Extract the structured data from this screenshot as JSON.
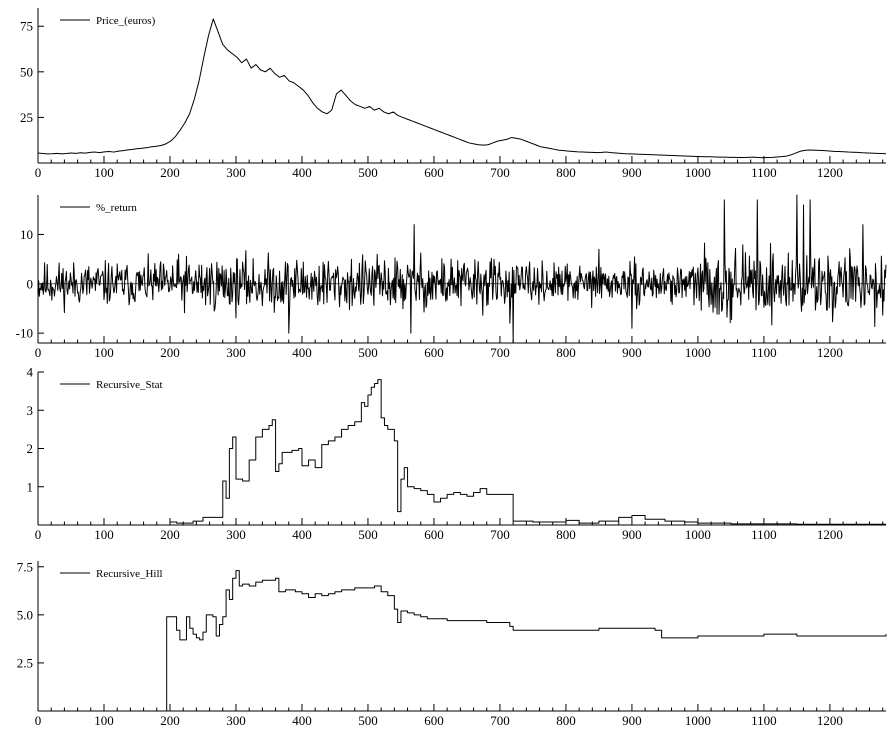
{
  "chart_data": [
    {
      "type": "line",
      "series": [
        {
          "name": "Price_(euros)",
          "x_range": [
            0,
            1285
          ],
          "values": [
            5.5,
            5.2,
            5.0,
            5.1,
            5.3,
            5.0,
            5.2,
            5.5,
            5.3,
            5.6,
            5.4,
            5.8,
            6.0,
            5.7,
            6.1,
            6.3,
            6.0,
            6.5,
            6.8,
            7.2,
            7.5,
            7.9,
            8.1,
            8.4,
            8.9,
            9.2,
            9.6,
            10.5,
            12,
            14.5,
            18,
            22,
            27,
            35,
            45,
            58,
            70,
            79,
            72,
            65,
            62,
            60,
            58,
            55,
            57,
            52,
            54,
            51,
            50,
            52,
            49,
            47,
            48,
            45,
            44,
            42,
            40,
            37,
            33,
            30,
            28,
            27,
            29,
            38,
            40,
            37,
            34,
            32,
            31,
            30,
            31,
            29,
            30,
            28,
            27,
            28,
            26,
            25,
            24,
            23,
            22,
            21,
            20,
            19,
            18,
            17,
            16,
            15,
            14,
            13,
            12,
            11,
            10.5,
            10,
            9.8,
            10,
            11,
            12,
            12.5,
            13,
            14,
            13.5,
            13,
            12,
            11,
            10,
            9,
            8.5,
            8,
            7.5,
            7,
            6.8,
            6.5,
            6.3,
            6.1,
            6.0,
            5.9,
            5.8,
            5.7,
            5.8,
            6.0,
            5.7,
            5.5,
            5.3,
            5.1,
            5.0,
            4.9,
            4.8,
            4.7,
            4.6,
            4.5,
            4.4,
            4.3,
            4.2,
            4.1,
            4.0,
            3.9,
            3.8,
            3.7,
            3.6,
            3.5,
            3.4,
            3.4,
            3.3,
            3.2,
            3.2,
            3.1,
            3.1,
            3.0,
            3.0,
            3.1,
            3.2,
            3.0,
            2.9,
            3.0,
            3.1,
            3.3,
            3.5,
            3.8,
            4.5,
            5.5,
            6.5,
            7.0,
            7.1,
            7.0,
            6.9,
            6.8,
            6.6,
            6.4,
            6.3,
            6.2,
            6.0,
            5.9,
            5.8,
            5.6,
            5.5,
            5.4,
            5.3,
            5.2,
            5.1
          ]
        }
      ],
      "xlim": [
        0,
        1285
      ],
      "ylim": [
        0,
        85
      ],
      "x_ticks": [
        "0",
        "100",
        "200",
        "300",
        "400",
        "500",
        "600",
        "700",
        "800",
        "900",
        "1000",
        "1100",
        "1200"
      ],
      "y_ticks": [
        {
          "v": 75,
          "label": "75"
        },
        {
          "v": 50,
          "label": "50"
        },
        {
          "v": 25,
          "label": "25"
        }
      ],
      "legend": "top-left"
    },
    {
      "type": "line",
      "series": [
        {
          "name": "%_return",
          "x_range": [
            0,
            1285
          ],
          "generated": "noise",
          "seed": 11,
          "amplitude_by_segment": [
            [
              0,
              200,
              4
            ],
            [
              200,
              700,
              5
            ],
            [
              700,
              1000,
              3.5
            ],
            [
              1000,
              1285,
              6
            ]
          ],
          "spikes": [
            [
              570,
              12
            ],
            [
              565,
              -10
            ],
            [
              720,
              -12
            ],
            [
              715,
              -8
            ],
            [
              1040,
              17
            ],
            [
              1090,
              17
            ],
            [
              1150,
              18
            ],
            [
              1160,
              16
            ],
            [
              1170,
              17
            ],
            [
              1250,
              12
            ],
            [
              900,
              -9
            ],
            [
              850,
              7
            ],
            [
              380,
              -10
            ]
          ],
          "zero_line": true
        }
      ],
      "xlim": [
        0,
        1285
      ],
      "ylim": [
        -12,
        18
      ],
      "x_ticks": [
        "0",
        "100",
        "200",
        "300",
        "400",
        "500",
        "600",
        "700",
        "800",
        "900",
        "1000",
        "1100",
        "1200"
      ],
      "y_ticks": [
        {
          "v": 10,
          "label": "10"
        },
        {
          "v": 0,
          "label": "0"
        },
        {
          "v": -10,
          "label": "-10"
        }
      ],
      "legend": "top-left"
    },
    {
      "type": "line",
      "step": true,
      "series": [
        {
          "name": "Recursive_Stat",
          "points": [
            [
              0,
              0
            ],
            [
              195,
              0
            ],
            [
              200,
              0.08
            ],
            [
              210,
              0.05
            ],
            [
              230,
              0.05
            ],
            [
              235,
              0.1
            ],
            [
              245,
              0.1
            ],
            [
              250,
              0.2
            ],
            [
              270,
              0.2
            ],
            [
              280,
              1.15
            ],
            [
              285,
              0.7
            ],
            [
              290,
              2.0
            ],
            [
              295,
              2.3
            ],
            [
              300,
              1.2
            ],
            [
              310,
              1.15
            ],
            [
              320,
              1.7
            ],
            [
              330,
              2.3
            ],
            [
              340,
              2.5
            ],
            [
              350,
              2.6
            ],
            [
              355,
              2.75
            ],
            [
              360,
              1.4
            ],
            [
              365,
              1.6
            ],
            [
              370,
              1.9
            ],
            [
              385,
              1.95
            ],
            [
              395,
              2.0
            ],
            [
              400,
              1.55
            ],
            [
              410,
              1.7
            ],
            [
              420,
              1.5
            ],
            [
              430,
              2.1
            ],
            [
              440,
              2.2
            ],
            [
              450,
              2.3
            ],
            [
              460,
              2.5
            ],
            [
              470,
              2.6
            ],
            [
              480,
              2.7
            ],
            [
              490,
              3.2
            ],
            [
              495,
              3.1
            ],
            [
              500,
              3.4
            ],
            [
              505,
              3.6
            ],
            [
              510,
              3.7
            ],
            [
              515,
              3.8
            ],
            [
              520,
              2.8
            ],
            [
              525,
              2.6
            ],
            [
              530,
              2.5
            ],
            [
              540,
              2.2
            ],
            [
              545,
              0.35
            ],
            [
              550,
              1.2
            ],
            [
              555,
              1.5
            ],
            [
              560,
              1.0
            ],
            [
              570,
              0.95
            ],
            [
              580,
              0.9
            ],
            [
              590,
              0.8
            ],
            [
              600,
              0.6
            ],
            [
              610,
              0.7
            ],
            [
              620,
              0.8
            ],
            [
              630,
              0.85
            ],
            [
              640,
              0.8
            ],
            [
              650,
              0.75
            ],
            [
              660,
              0.85
            ],
            [
              670,
              0.95
            ],
            [
              680,
              0.8
            ],
            [
              700,
              0.8
            ],
            [
              715,
              0.8
            ],
            [
              720,
              0.1
            ],
            [
              750,
              0.08
            ],
            [
              800,
              0.12
            ],
            [
              820,
              0.05
            ],
            [
              850,
              0.1
            ],
            [
              880,
              0.2
            ],
            [
              900,
              0.25
            ],
            [
              920,
              0.15
            ],
            [
              950,
              0.1
            ],
            [
              980,
              0.08
            ],
            [
              1000,
              0.05
            ],
            [
              1050,
              0.03
            ],
            [
              1100,
              0.03
            ],
            [
              1150,
              0.02
            ],
            [
              1200,
              0.02
            ],
            [
              1285,
              0.02
            ]
          ]
        }
      ],
      "xlim": [
        0,
        1285
      ],
      "ylim": [
        0,
        4
      ],
      "x_ticks": [
        "0",
        "100",
        "200",
        "300",
        "400",
        "500",
        "600",
        "700",
        "800",
        "900",
        "1000",
        "1100",
        "1200"
      ],
      "y_ticks": [
        {
          "v": 4,
          "label": "4"
        },
        {
          "v": 3,
          "label": "3"
        },
        {
          "v": 2,
          "label": "2"
        },
        {
          "v": 1,
          "label": "1"
        }
      ],
      "legend": "top-left"
    },
    {
      "type": "line",
      "step": true,
      "series": [
        {
          "name": "Recursive_Hill",
          "points": [
            [
              0,
              0
            ],
            [
              193,
              0
            ],
            [
              195,
              4.9
            ],
            [
              200,
              4.9
            ],
            [
              205,
              4.9
            ],
            [
              210,
              4.2
            ],
            [
              215,
              3.7
            ],
            [
              220,
              3.7
            ],
            [
              225,
              4.9
            ],
            [
              230,
              4.3
            ],
            [
              235,
              4.0
            ],
            [
              240,
              3.8
            ],
            [
              245,
              3.7
            ],
            [
              250,
              4.1
            ],
            [
              255,
              5.0
            ],
            [
              265,
              4.9
            ],
            [
              270,
              3.9
            ],
            [
              275,
              4.5
            ],
            [
              280,
              4.9
            ],
            [
              285,
              6.3
            ],
            [
              290,
              5.8
            ],
            [
              295,
              6.9
            ],
            [
              300,
              7.3
            ],
            [
              305,
              6.5
            ],
            [
              310,
              6.6
            ],
            [
              320,
              6.5
            ],
            [
              330,
              6.7
            ],
            [
              340,
              6.8
            ],
            [
              350,
              6.8
            ],
            [
              360,
              6.9
            ],
            [
              365,
              6.2
            ],
            [
              375,
              6.3
            ],
            [
              390,
              6.2
            ],
            [
              400,
              6.1
            ],
            [
              410,
              5.9
            ],
            [
              420,
              6.1
            ],
            [
              430,
              6.0
            ],
            [
              440,
              6.1
            ],
            [
              450,
              6.2
            ],
            [
              460,
              6.3
            ],
            [
              470,
              6.3
            ],
            [
              480,
              6.4
            ],
            [
              490,
              6.4
            ],
            [
              500,
              6.4
            ],
            [
              510,
              6.5
            ],
            [
              520,
              6.2
            ],
            [
              530,
              6.0
            ],
            [
              540,
              5.3
            ],
            [
              545,
              4.6
            ],
            [
              550,
              5.2
            ],
            [
              560,
              5.1
            ],
            [
              570,
              5.0
            ],
            [
              580,
              4.9
            ],
            [
              590,
              4.8
            ],
            [
              600,
              4.8
            ],
            [
              620,
              4.7
            ],
            [
              640,
              4.7
            ],
            [
              660,
              4.7
            ],
            [
              680,
              4.6
            ],
            [
              700,
              4.6
            ],
            [
              715,
              4.4
            ],
            [
              720,
              4.2
            ],
            [
              750,
              4.2
            ],
            [
              800,
              4.2
            ],
            [
              850,
              4.3
            ],
            [
              900,
              4.3
            ],
            [
              920,
              4.3
            ],
            [
              935,
              4.2
            ],
            [
              945,
              3.8
            ],
            [
              980,
              3.8
            ],
            [
              1000,
              3.9
            ],
            [
              1050,
              3.9
            ],
            [
              1100,
              4.0
            ],
            [
              1150,
              3.9
            ],
            [
              1200,
              3.9
            ],
            [
              1250,
              3.9
            ],
            [
              1285,
              4.0
            ]
          ]
        }
      ],
      "xlim": [
        0,
        1285
      ],
      "ylim": [
        0,
        7.8
      ],
      "x_ticks": [
        "0",
        "100",
        "200",
        "300",
        "400",
        "500",
        "600",
        "700",
        "800",
        "900",
        "1000",
        "1100",
        "1200"
      ],
      "y_ticks": [
        {
          "v": 7.5,
          "label": "7.5"
        },
        {
          "v": 5.0,
          "label": "5.0"
        },
        {
          "v": 2.5,
          "label": "2.5"
        }
      ],
      "legend": "top-left"
    }
  ],
  "colors": {
    "line": "#000000",
    "background": "#ffffff"
  }
}
